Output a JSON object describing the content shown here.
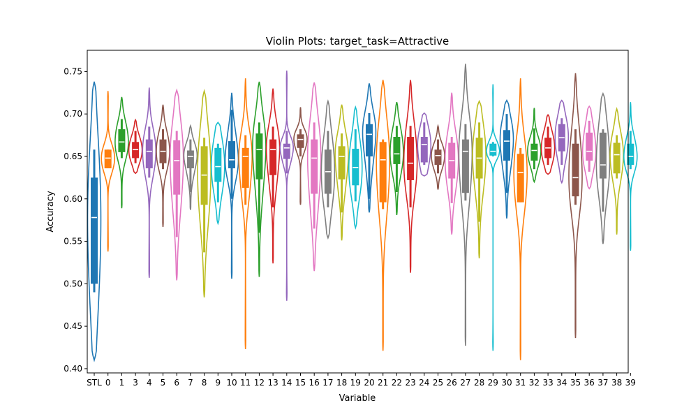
{
  "chart_data": {
    "type": "violin",
    "title": "Violin Plots: target_task=Attractive",
    "xlabel": "Variable",
    "ylabel": "Accuracy",
    "ylim": [
      0.395,
      0.775
    ],
    "yticks": [
      0.4,
      0.45,
      0.5,
      0.55,
      0.6,
      0.65,
      0.7,
      0.75
    ],
    "ytick_labels": [
      "0.40",
      "0.45",
      "0.50",
      "0.55",
      "0.60",
      "0.65",
      "0.70",
      "0.75"
    ],
    "grid": false,
    "categories": [
      "STL",
      "0",
      "1",
      "3",
      "4",
      "5",
      "6",
      "7",
      "8",
      "9",
      "10",
      "11",
      "12",
      "13",
      "14",
      "15",
      "16",
      "17",
      "18",
      "19",
      "20",
      "21",
      "22",
      "23",
      "24",
      "25",
      "26",
      "27",
      "28",
      "29",
      "30",
      "31",
      "32",
      "33",
      "34",
      "35",
      "36",
      "37",
      "38",
      "39"
    ],
    "colors": [
      "#1f77b4",
      "#ff7f0e",
      "#2ca02c",
      "#d62728",
      "#9467bd",
      "#8c564b",
      "#e377c2",
      "#7f7f7f",
      "#bcbd22",
      "#17becf"
    ],
    "series": [
      {
        "min": 0.41,
        "max": 0.738,
        "q1": 0.5,
        "median": 0.578,
        "q3": 0.625,
        "wlo": 0.49,
        "whi": 0.658
      },
      {
        "min": 0.538,
        "max": 0.727,
        "q1": 0.636,
        "median": 0.648,
        "q3": 0.658,
        "wlo": 0.636,
        "whi": 0.658
      },
      {
        "min": 0.589,
        "max": 0.72,
        "q1": 0.655,
        "median": 0.667,
        "q3": 0.682,
        "wlo": 0.648,
        "whi": 0.694
      },
      {
        "min": 0.63,
        "max": 0.693,
        "q1": 0.648,
        "median": 0.658,
        "q3": 0.667,
        "wlo": 0.642,
        "whi": 0.68
      },
      {
        "min": 0.507,
        "max": 0.731,
        "q1": 0.636,
        "median": 0.656,
        "q3": 0.67,
        "wlo": 0.625,
        "whi": 0.685
      },
      {
        "min": 0.567,
        "max": 0.711,
        "q1": 0.642,
        "median": 0.656,
        "q3": 0.67,
        "wlo": 0.635,
        "whi": 0.682
      },
      {
        "min": 0.504,
        "max": 0.728,
        "q1": 0.605,
        "median": 0.645,
        "q3": 0.669,
        "wlo": 0.555,
        "whi": 0.68
      },
      {
        "min": 0.587,
        "max": 0.686,
        "q1": 0.636,
        "median": 0.65,
        "q3": 0.657,
        "wlo": 0.608,
        "whi": 0.67
      },
      {
        "min": 0.484,
        "max": 0.727,
        "q1": 0.593,
        "median": 0.628,
        "q3": 0.662,
        "wlo": 0.537,
        "whi": 0.672
      },
      {
        "min": 0.571,
        "max": 0.69,
        "q1": 0.62,
        "median": 0.638,
        "q3": 0.66,
        "wlo": 0.596,
        "whi": 0.665
      },
      {
        "min": 0.506,
        "max": 0.725,
        "q1": 0.636,
        "median": 0.646,
        "q3": 0.668,
        "wlo": 0.6,
        "whi": 0.705
      },
      {
        "min": 0.423,
        "max": 0.742,
        "q1": 0.613,
        "median": 0.65,
        "q3": 0.66,
        "wlo": 0.593,
        "whi": 0.675
      },
      {
        "min": 0.508,
        "max": 0.738,
        "q1": 0.623,
        "median": 0.658,
        "q3": 0.677,
        "wlo": 0.56,
        "whi": 0.69
      },
      {
        "min": 0.524,
        "max": 0.73,
        "q1": 0.628,
        "median": 0.658,
        "q3": 0.67,
        "wlo": 0.59,
        "whi": 0.685
      },
      {
        "min": 0.48,
        "max": 0.751,
        "q1": 0.647,
        "median": 0.66,
        "q3": 0.665,
        "wlo": 0.63,
        "whi": 0.68
      },
      {
        "min": 0.593,
        "max": 0.708,
        "q1": 0.66,
        "median": 0.67,
        "q3": 0.676,
        "wlo": 0.65,
        "whi": 0.682
      },
      {
        "min": 0.515,
        "max": 0.737,
        "q1": 0.606,
        "median": 0.648,
        "q3": 0.67,
        "wlo": 0.565,
        "whi": 0.69
      },
      {
        "min": 0.554,
        "max": 0.715,
        "q1": 0.606,
        "median": 0.632,
        "q3": 0.658,
        "wlo": 0.59,
        "whi": 0.68
      },
      {
        "min": 0.551,
        "max": 0.711,
        "q1": 0.623,
        "median": 0.65,
        "q3": 0.662,
        "wlo": 0.584,
        "whi": 0.677
      },
      {
        "min": 0.566,
        "max": 0.708,
        "q1": 0.616,
        "median": 0.637,
        "q3": 0.659,
        "wlo": 0.597,
        "whi": 0.682
      },
      {
        "min": 0.584,
        "max": 0.736,
        "q1": 0.65,
        "median": 0.676,
        "q3": 0.688,
        "wlo": 0.6,
        "whi": 0.701
      },
      {
        "min": 0.421,
        "max": 0.74,
        "q1": 0.596,
        "median": 0.646,
        "q3": 0.667,
        "wlo": 0.588,
        "whi": 0.67
      },
      {
        "min": 0.581,
        "max": 0.714,
        "q1": 0.641,
        "median": 0.653,
        "q3": 0.673,
        "wlo": 0.608,
        "whi": 0.686
      },
      {
        "min": 0.513,
        "max": 0.74,
        "q1": 0.622,
        "median": 0.642,
        "q3": 0.673,
        "wlo": 0.59,
        "whi": 0.686
      },
      {
        "min": 0.627,
        "max": 0.701,
        "q1": 0.643,
        "median": 0.664,
        "q3": 0.673,
        "wlo": 0.64,
        "whi": 0.69
      },
      {
        "min": 0.611,
        "max": 0.686,
        "q1": 0.64,
        "median": 0.651,
        "q3": 0.658,
        "wlo": 0.63,
        "whi": 0.67
      },
      {
        "min": 0.558,
        "max": 0.725,
        "q1": 0.624,
        "median": 0.645,
        "q3": 0.666,
        "wlo": 0.595,
        "whi": 0.673
      },
      {
        "min": 0.427,
        "max": 0.759,
        "q1": 0.607,
        "median": 0.656,
        "q3": 0.67,
        "wlo": 0.598,
        "whi": 0.688
      },
      {
        "min": 0.53,
        "max": 0.715,
        "q1": 0.624,
        "median": 0.648,
        "q3": 0.672,
        "wlo": 0.573,
        "whi": 0.69
      },
      {
        "min": 0.421,
        "max": 0.735,
        "q1": 0.651,
        "median": 0.656,
        "q3": 0.665,
        "wlo": 0.65,
        "whi": 0.667
      },
      {
        "min": 0.577,
        "max": 0.716,
        "q1": 0.645,
        "median": 0.668,
        "q3": 0.681,
        "wlo": 0.607,
        "whi": 0.7
      },
      {
        "min": 0.41,
        "max": 0.742,
        "q1": 0.596,
        "median": 0.631,
        "q3": 0.653,
        "wlo": 0.596,
        "whi": 0.66
      },
      {
        "min": 0.62,
        "max": 0.707,
        "q1": 0.645,
        "median": 0.657,
        "q3": 0.665,
        "wlo": 0.635,
        "whi": 0.683
      },
      {
        "min": 0.629,
        "max": 0.699,
        "q1": 0.648,
        "median": 0.66,
        "q3": 0.672,
        "wlo": 0.64,
        "whi": 0.685
      },
      {
        "min": 0.619,
        "max": 0.716,
        "q1": 0.656,
        "median": 0.672,
        "q3": 0.688,
        "wlo": 0.64,
        "whi": 0.695
      },
      {
        "min": 0.436,
        "max": 0.748,
        "q1": 0.603,
        "median": 0.625,
        "q3": 0.665,
        "wlo": 0.593,
        "whi": 0.682
      },
      {
        "min": 0.612,
        "max": 0.709,
        "q1": 0.645,
        "median": 0.656,
        "q3": 0.678,
        "wlo": 0.632,
        "whi": 0.692
      },
      {
        "min": 0.547,
        "max": 0.724,
        "q1": 0.624,
        "median": 0.64,
        "q3": 0.678,
        "wlo": 0.585,
        "whi": 0.682
      },
      {
        "min": 0.558,
        "max": 0.706,
        "q1": 0.63,
        "median": 0.652,
        "q3": 0.666,
        "wlo": 0.624,
        "whi": 0.675
      },
      {
        "min": 0.539,
        "max": 0.714,
        "q1": 0.64,
        "median": 0.65,
        "q3": 0.665,
        "wlo": 0.635,
        "whi": 0.68
      }
    ]
  }
}
